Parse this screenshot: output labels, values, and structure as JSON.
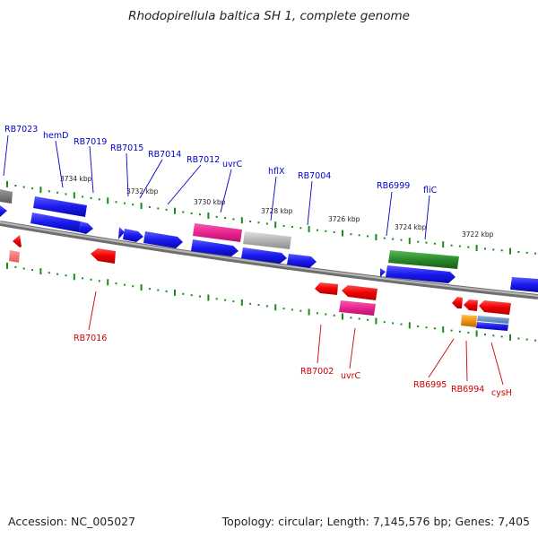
{
  "title": "Rhodopirellula baltica SH 1, complete genome",
  "footer": {
    "accession": "Accession: NC_005027",
    "summary": "Topology: circular; Length: 7,145,576 bp; Genes: 7,405"
  },
  "scale_labels": [
    "3734 kbp",
    "3732 kbp",
    "3730 kbp",
    "3728 kbp",
    "3726 kbp",
    "3724 kbp",
    "3722 kbp"
  ],
  "colors": {
    "backbone": "#808080",
    "tick": "#1a8a1a",
    "label_blue": "#0000cc",
    "label_red": "#cc0000",
    "cds_blue": "#1a1aee",
    "cds_red": "#ee0000",
    "magenta": "#e8258f",
    "grey": "#b4b4b4",
    "green": "#2a8a2a",
    "orange": "#f09010"
  },
  "top_labels": [
    "RB7023",
    "hemD",
    "RB7019",
    "RB7015",
    "RB7014",
    "RB7012",
    "uvrC",
    "hflX",
    "RB7004",
    "RB6999",
    "fliC"
  ],
  "bottom_labels": [
    "RB7016",
    "RB7002",
    "uvrC",
    "RB6995",
    "RB6994",
    "cysH"
  ]
}
